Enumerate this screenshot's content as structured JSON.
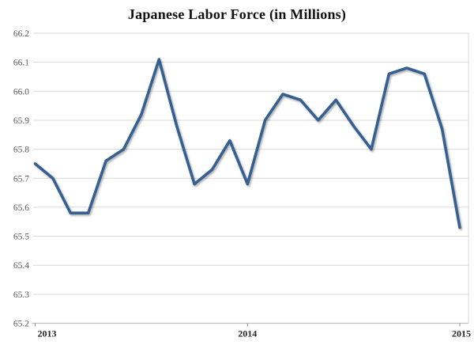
{
  "chart_data": {
    "type": "line",
    "title": "Japanese Labor Force (in Millions)",
    "x": [
      "2013-01",
      "2013-02",
      "2013-03",
      "2013-04",
      "2013-05",
      "2013-06",
      "2013-07",
      "2013-08",
      "2013-09",
      "2013-10",
      "2013-11",
      "2013-12",
      "2014-01",
      "2014-02",
      "2014-03",
      "2014-04",
      "2014-05",
      "2014-06",
      "2014-07",
      "2014-08",
      "2014-09",
      "2014-10",
      "2014-11",
      "2014-12",
      "2015-01"
    ],
    "series": [
      {
        "name": "Japanese Labor Force",
        "values": [
          65.75,
          65.7,
          65.58,
          65.58,
          65.76,
          65.8,
          65.92,
          66.11,
          65.88,
          65.68,
          65.73,
          65.83,
          65.68,
          65.9,
          65.99,
          65.97,
          65.9,
          65.97,
          65.88,
          65.8,
          66.06,
          66.08,
          66.06,
          65.87,
          65.53
        ]
      }
    ],
    "xlabel": "",
    "ylabel": "",
    "ylim": [
      65.2,
      66.2
    ],
    "ytick_step": 0.1,
    "ytick_labels": [
      "66.2",
      "66.1",
      "66.0",
      "65.9",
      "65.8",
      "65.7",
      "65.6",
      "65.5",
      "65.4",
      "65.3",
      "65.2"
    ],
    "xtick_labels": [
      "2013",
      "2014",
      "2015"
    ],
    "xtick_positions": [
      0,
      12,
      24
    ],
    "grid": "horizontal",
    "legend": "none",
    "colors": {
      "line": "#35618F",
      "gridline": "#D9D9D9",
      "axis": "#BFBFBF",
      "tick": "#8C8C8C",
      "ytick_text": "#595959",
      "xtick_text": "#262626",
      "title_text": "#111111",
      "background": "#FFFFFF"
    }
  }
}
